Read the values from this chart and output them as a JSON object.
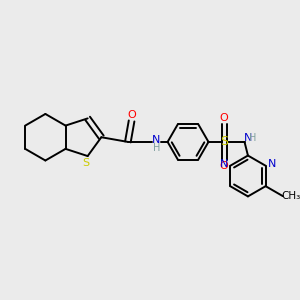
{
  "bg_color": "#ebebeb",
  "bond_color": "#000000",
  "S_color": "#cccc00",
  "N_color": "#0000cd",
  "O_color": "#ff0000",
  "H_color": "#7f9f9f",
  "lw": 1.4,
  "dbo": 0.13,
  "xlim": [
    0,
    10
  ],
  "ylim": [
    0,
    10
  ]
}
